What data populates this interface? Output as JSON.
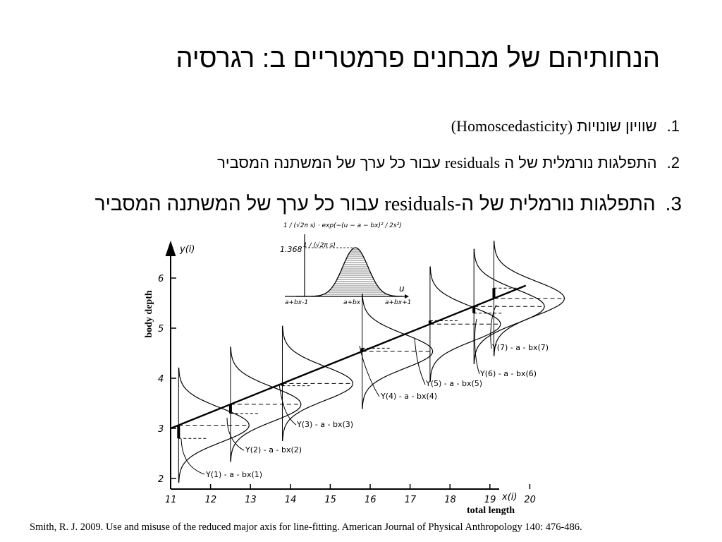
{
  "slide": {
    "title": "הנחותיהם של מבחנים פרמטריים ב: רגרסיה",
    "bullets": [
      {
        "num": "1.",
        "he": "שוויון שונויות",
        "latin": "(Homoscedasticity)"
      },
      {
        "num": "2.",
        "he_a": "התפלגות נורמלית של ה",
        "latin": "residuals",
        "he_b": "עבור כל ערך של המשתנה המסביר"
      },
      {
        "num": "3.",
        "he_a": "התפלגות נורמלית של ה-",
        "latin": "residuals",
        "he_b": "עבור כל ערך של המשתנה המסביר"
      }
    ],
    "citation": "Smith, R. J. 2009. Use and misuse of the reduced major axis for line-fitting. American Journal of Physical Anthropology 140: 476-486."
  },
  "figure": {
    "ylabel": "body depth",
    "xlabel": "total length",
    "y_axis_title": "y(i)",
    "x_axis_title": "x(i)",
    "y_ticks": [
      "2",
      "3",
      "4",
      "5",
      "6"
    ],
    "x_ticks": [
      "11",
      "12",
      "13",
      "14",
      "15",
      "16",
      "17",
      "18",
      "19",
      "20"
    ],
    "residual_labels": [
      "Y(1) - a - bx(1)",
      "Y(2) - a - bx(2)",
      "Y(3) - a - bx(3)",
      "Y(4) - a - bx(4)",
      "Y(5) - a - bx(5)",
      "Y(6) - a - bx(6)",
      "Y(7) - a - bx(7)"
    ],
    "inset": {
      "formula_top": "1 / (√2π s) · exp(−(u − a − bx)² / 2s²)",
      "peak_label": "1.368",
      "peak_formula": "1 / (√2π s)",
      "axis_label": "u",
      "ticks": [
        "a+bx-1",
        "a+bx",
        "a+bx+1"
      ]
    }
  },
  "chart_data": {
    "type": "scatter",
    "xlabel": "total length",
    "ylabel": "body depth",
    "xlim": [
      11,
      20
    ],
    "ylim": [
      2,
      6
    ],
    "regression_line": {
      "x": [
        11,
        19.9
      ],
      "y": [
        3.0,
        5.85
      ]
    },
    "points": [
      {
        "x": 11.2,
        "y": 2.8
      },
      {
        "x": 12.5,
        "y": 3.3
      },
      {
        "x": 13.8,
        "y": 3.85
      },
      {
        "x": 15.8,
        "y": 4.6
      },
      {
        "x": 17.5,
        "y": 5.15
      },
      {
        "x": 18.6,
        "y": 5.3
      },
      {
        "x": 19.1,
        "y": 5.8
      }
    ]
  }
}
